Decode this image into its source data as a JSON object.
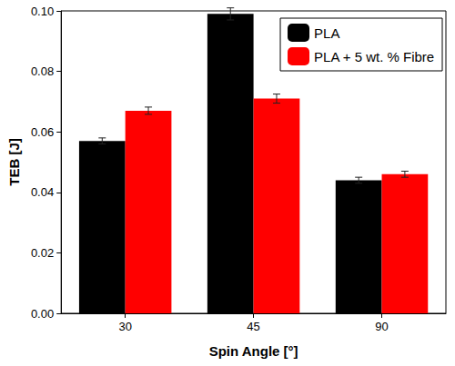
{
  "chart_data": {
    "type": "bar",
    "x_label": "Spin Angle [°]",
    "y_label": "TEB [J]",
    "categories": [
      "30",
      "45",
      "90"
    ],
    "series": [
      {
        "name": "PLA",
        "color": "#000000",
        "values": [
          0.057,
          0.099,
          0.044
        ],
        "errors": [
          0.001,
          0.002,
          0.001
        ]
      },
      {
        "name": "PLA + 5 wt. % Fibre",
        "color": "#ff0000",
        "values": [
          0.067,
          0.071,
          0.046
        ],
        "errors": [
          0.0012,
          0.0015,
          0.001
        ]
      }
    ],
    "ylim": [
      0,
      0.1
    ],
    "yticks": [
      {
        "value": 0,
        "label": "0.00"
      },
      {
        "value": 0.02,
        "label": "0.02"
      },
      {
        "value": 0.04,
        "label": "0.04"
      },
      {
        "value": 0.06,
        "label": "0.06"
      },
      {
        "value": 0.08,
        "label": "0.08"
      },
      {
        "value": 0.1,
        "label": "0.10"
      }
    ],
    "legend": "upper right",
    "grid": false
  }
}
